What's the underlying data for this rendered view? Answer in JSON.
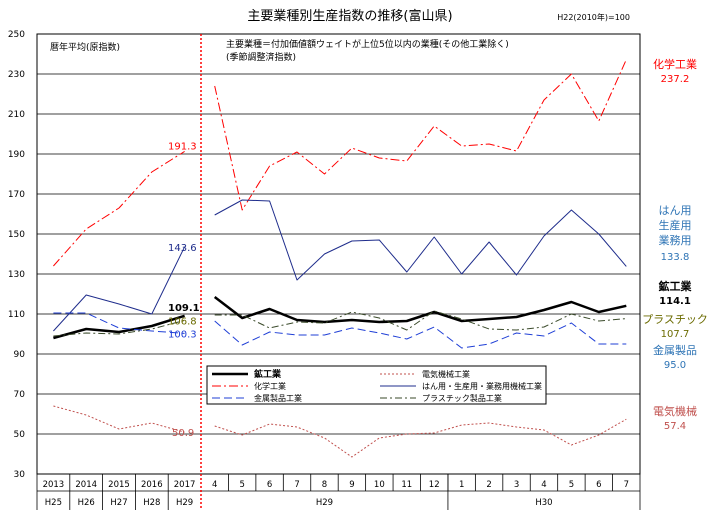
{
  "chart_data": {
    "type": "line",
    "title": "主要業種別生産指数の推移(富山県)",
    "base_note": "H22(2010年)=100",
    "annual_label": "暦年平均(原指数)",
    "monthly_note_1": "主要業種＝付加価値額ウェイトが上位5位以内の業種(その他工業除く)",
    "monthly_note_2": "(季節調整済指数)",
    "ylim": [
      30,
      250
    ],
    "yticks": [
      30,
      50,
      70,
      90,
      110,
      130,
      150,
      170,
      190,
      210,
      230,
      250
    ],
    "grid": true,
    "legend_placement": "center-bottom",
    "annual_categories": [
      "2013",
      "2014",
      "2015",
      "2016",
      "2017"
    ],
    "annual_era_labels": [
      "H25",
      "H26",
      "H27",
      "H28",
      "H29"
    ],
    "monthly_categories": [
      "4",
      "5",
      "6",
      "7",
      "8",
      "9",
      "10",
      "11",
      "12",
      "1",
      "2",
      "3",
      "4",
      "5",
      "6",
      "7"
    ],
    "monthly_group_labels": [
      "H29",
      "H30"
    ],
    "series": [
      {
        "key": "mining",
        "name": "鉱工業",
        "color": "#000000",
        "dash": "solid",
        "width": 2.5,
        "annual": [
          98.0,
          102.5,
          101.0,
          104.0,
          109.1
        ],
        "monthly": [
          118.5,
          108.0,
          112.5,
          107.0,
          106.0,
          107.0,
          106.0,
          106.5,
          111.0,
          106.5,
          107.5,
          108.5,
          112.0,
          116.0,
          111.0,
          114.1
        ],
        "callout_value": "109.1",
        "end_label": "鉱工業",
        "end_value": "114.1"
      },
      {
        "key": "electric",
        "name": "電気機械工業",
        "color": "#c0504d",
        "dash": "2,2",
        "width": 1,
        "annual": [
          64.0,
          59.5,
          52.5,
          55.5,
          50.9
        ],
        "monthly": [
          54.0,
          49.5,
          55.0,
          53.5,
          48.0,
          38.5,
          48.0,
          50.0,
          50.5,
          54.5,
          55.5,
          53.5,
          52.0,
          44.5,
          49.5,
          57.4
        ],
        "callout_value": "50.9",
        "end_label": "電気機械",
        "end_value": "57.4"
      },
      {
        "key": "chemical",
        "name": "化学工業",
        "color": "#ff0000",
        "dash": "9,3,2,3",
        "width": 1,
        "annual": [
          134.0,
          152.5,
          163.0,
          181.0,
          191.3
        ],
        "monthly": [
          224.0,
          162.0,
          184.0,
          191.0,
          180.0,
          193.0,
          188.0,
          186.5,
          204.0,
          194.0,
          195.0,
          191.5,
          217.0,
          230.0,
          206.5,
          237.2
        ],
        "callout_value": "191.3",
        "end_label": "化学工業",
        "end_value": "237.2"
      },
      {
        "key": "machinery",
        "name": "はん用・生産用・業務用機械工業",
        "color": "#1f2d8c",
        "dash": "solid",
        "width": 1,
        "annual": [
          101.5,
          119.5,
          115.0,
          110.0,
          143.6
        ],
        "monthly": [
          159.5,
          167.0,
          166.5,
          127.0,
          140.0,
          146.5,
          147.0,
          131.0,
          148.5,
          130.0,
          146.0,
          129.5,
          149.0,
          162.0,
          150.0,
          133.8
        ],
        "callout_value": "143.6",
        "end_label": "はん用\n生産用\n業務用",
        "end_value": "133.8"
      },
      {
        "key": "metal",
        "name": "金属製品工業",
        "color": "#1f3fd6",
        "dash": "8,4",
        "width": 1,
        "annual": [
          110.5,
          110.5,
          103.0,
          101.5,
          100.3
        ],
        "monthly": [
          106.5,
          94.5,
          101.0,
          99.5,
          99.5,
          103.0,
          100.5,
          97.5,
          103.5,
          93.0,
          95.0,
          100.5,
          99.0,
          105.5,
          95.0,
          95.0
        ],
        "callout_value": "100.3",
        "end_label": "金属製品",
        "end_value": "95.0"
      },
      {
        "key": "plastic",
        "name": "プラスチック製品工業",
        "color": "#3a4a2a",
        "dash": "7,3,2,3",
        "width": 1,
        "annual": [
          99.0,
          100.5,
          100.0,
          102.5,
          106.8
        ],
        "monthly": [
          109.5,
          109.5,
          103.0,
          106.0,
          105.5,
          111.0,
          108.0,
          102.0,
          111.5,
          107.5,
          102.5,
          102.0,
          103.5,
          110.0,
          106.5,
          107.7
        ],
        "callout_value": "106.8",
        "end_label": "プラスチック",
        "end_value": "107.7"
      }
    ]
  },
  "style": {
    "callout_colors": {
      "mining": "#000000",
      "electric": "#c0504d",
      "chemical": "#ff0000",
      "machinery": "#1f2d8c",
      "metal": "#1f3fd6",
      "plastic": "#6b6b00"
    },
    "end_label_colors": {
      "mining": "#000000",
      "electric": "#c0504d",
      "chemical": "#ff0000",
      "machinery": "#2e74b5",
      "metal": "#2e74b5",
      "plastic": "#6b6b00"
    },
    "end_value_colors": {
      "mining": "#000000",
      "electric": "#c0504d",
      "chemical": "#ff0000",
      "machinery": "#2e74b5",
      "metal": "#2e74b5",
      "plastic": "#6b6b00"
    },
    "divider_color": "#ff0000"
  }
}
